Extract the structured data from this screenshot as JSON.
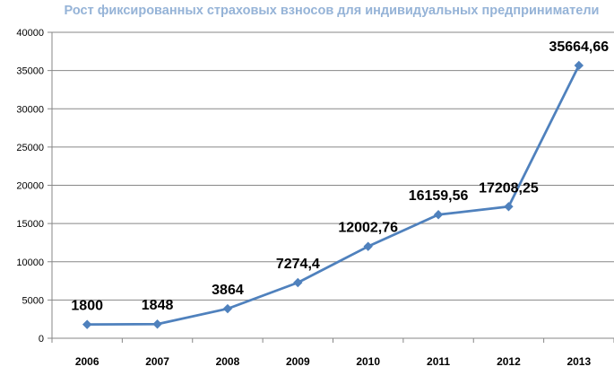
{
  "chart_data": {
    "type": "line",
    "title": "Рост фиксированных страховых взносов для индивидуальных предприниматели",
    "xlabel": "",
    "ylabel": "",
    "categories": [
      "2006",
      "2007",
      "2008",
      "2009",
      "2010",
      "2011",
      "2012",
      "2013"
    ],
    "series": [
      {
        "values": [
          1800,
          1848,
          3864,
          7274.4,
          12002.76,
          16159.56,
          17208.25,
          35664.66
        ],
        "labels": [
          "1800",
          "1848",
          "3864",
          "7274,4",
          "12002,76",
          "16159,56",
          "17208,25",
          "35664,66"
        ]
      }
    ],
    "ylim": [
      0,
      40000
    ],
    "yticks": [
      0,
      5000,
      10000,
      15000,
      20000,
      25000,
      30000,
      35000,
      40000
    ],
    "grid": true,
    "legend": "none",
    "marker": "diamond",
    "colors": {
      "line": "#4f81bd",
      "marker": "#4f81bd",
      "title": "#95b3d7",
      "grid": "#878787"
    }
  }
}
